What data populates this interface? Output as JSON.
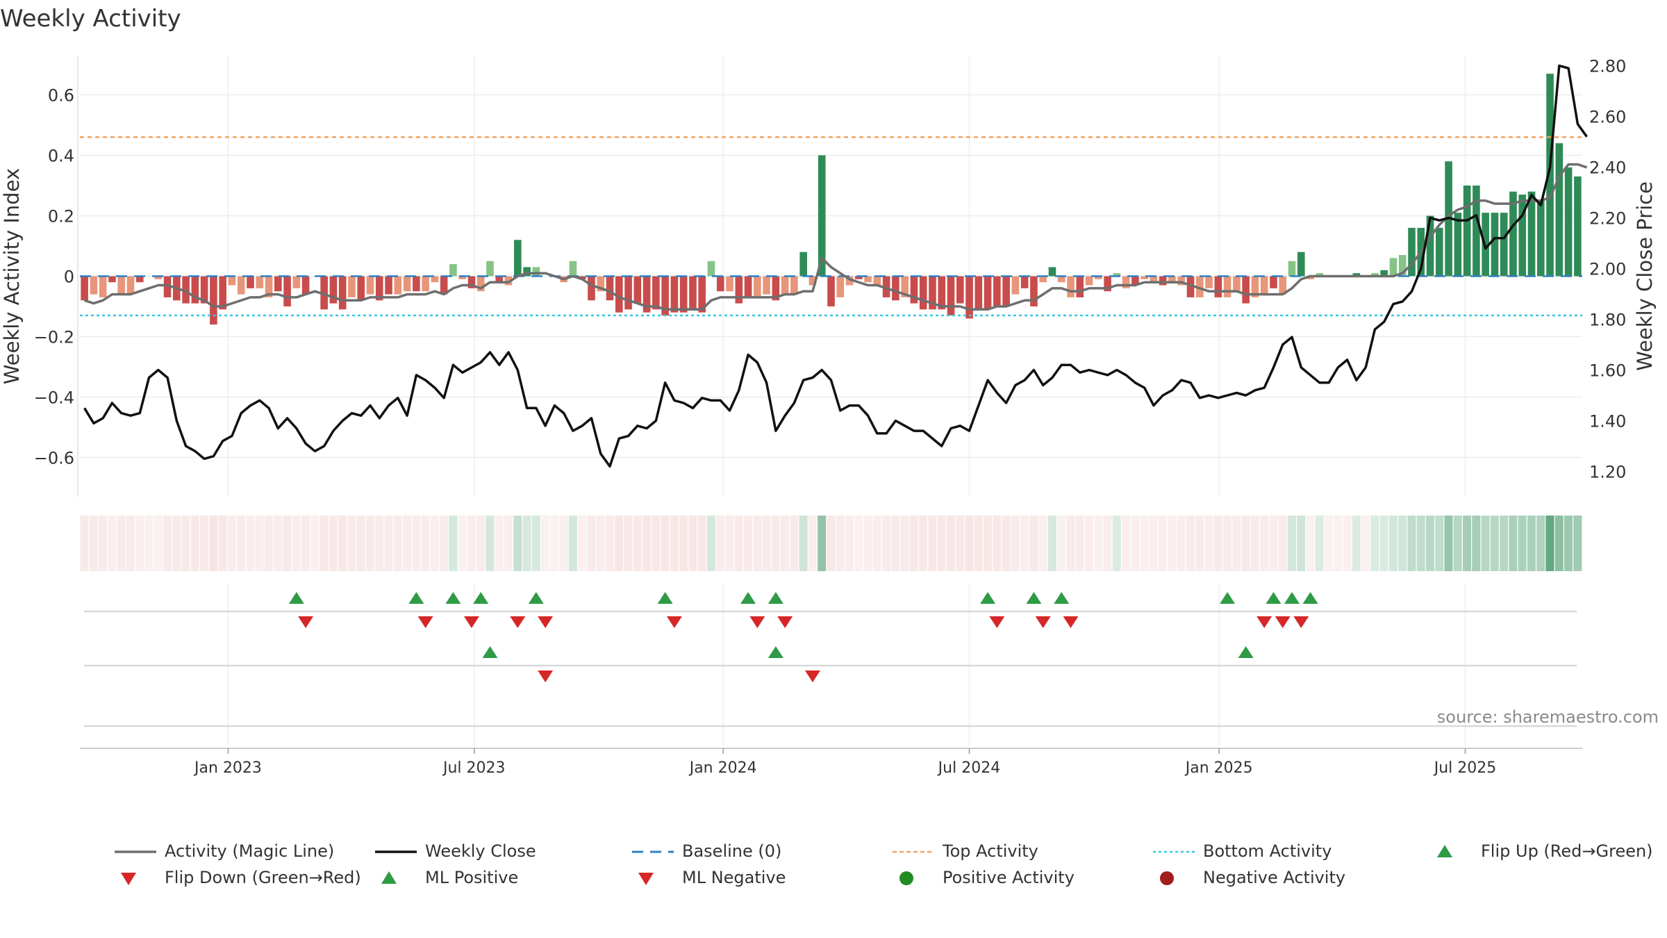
{
  "title": "Weekly Activity",
  "colors": {
    "pos_strong": "#2e8b57",
    "pos_light": "#86c386",
    "neg_strong": "#c94c4c",
    "neg_light": "#e8967a",
    "magic": "#6e6e6e",
    "close": "#111111",
    "baseline": "#2f7fc1",
    "top": "#f0a462",
    "bottom": "#37c8e0",
    "flip_up": "#2e9b45",
    "flip_down": "#d62728"
  },
  "source_text": "source: sharemaestro.com",
  "chart_data": {
    "type": "bar",
    "title": "Weekly Activity",
    "ylabel": "Weekly Activity Index",
    "y2label": "Weekly Close Price",
    "ylim": [
      -0.73,
      0.73
    ],
    "y2lim": [
      1.1,
      2.84
    ],
    "yticks": [
      0.6,
      0.4,
      0.2,
      0,
      -0.2,
      -0.4,
      -0.6
    ],
    "ytick_labels": [
      "0.6",
      "0.4",
      "0.2",
      "0",
      "−0.2",
      "−0.4",
      "−0.6"
    ],
    "y2ticks": [
      2.8,
      2.6,
      2.4,
      2.2,
      2.0,
      1.8,
      1.6,
      1.4,
      1.2
    ],
    "y2tick_labels": [
      "2.80",
      "2.60",
      "2.40",
      "2.20",
      "2.00",
      "1.80",
      "1.60",
      "1.40",
      "1.20"
    ],
    "x_range_weeks": [
      0,
      158
    ],
    "xticks": [
      {
        "label": "Jan 2023",
        "week": 15.3
      },
      {
        "label": "Jul 2023",
        "week": 41.3
      },
      {
        "label": "Jan 2024",
        "week": 67.6
      },
      {
        "label": "Jul 2024",
        "week": 93.6
      },
      {
        "label": "Jan 2025",
        "week": 120.0
      },
      {
        "label": "Jul 2025",
        "week": 146.0
      }
    ],
    "top_activity": 0.46,
    "bottom_activity": -0.13,
    "baseline": 0,
    "activity": [
      -0.08,
      -0.06,
      -0.07,
      -0.02,
      -0.06,
      -0.06,
      -0.02,
      0,
      -0.01,
      -0.07,
      -0.08,
      -0.09,
      -0.09,
      -0.09,
      -0.16,
      -0.11,
      -0.03,
      -0.06,
      -0.04,
      -0.04,
      -0.07,
      -0.05,
      -0.1,
      -0.04,
      -0.06,
      0,
      -0.11,
      -0.09,
      -0.11,
      -0.07,
      -0.08,
      -0.06,
      -0.08,
      -0.06,
      -0.06,
      -0.05,
      -0.05,
      -0.05,
      -0.02,
      -0.06,
      0.04,
      -0.01,
      -0.04,
      -0.05,
      0.05,
      -0.02,
      -0.03,
      0.12,
      0.03,
      0.03,
      0,
      0,
      -0.02,
      0.05,
      -0.01,
      -0.08,
      -0.05,
      -0.08,
      -0.12,
      -0.11,
      -0.09,
      -0.12,
      -0.11,
      -0.13,
      -0.12,
      -0.12,
      -0.11,
      -0.12,
      0.05,
      -0.05,
      -0.05,
      -0.09,
      -0.07,
      -0.07,
      -0.06,
      -0.08,
      -0.06,
      -0.06,
      0.08,
      -0.03,
      0.4,
      -0.1,
      -0.07,
      -0.03,
      -0.01,
      -0.02,
      -0.03,
      -0.07,
      -0.08,
      -0.07,
      -0.09,
      -0.11,
      -0.11,
      -0.11,
      -0.13,
      -0.09,
      -0.14,
      -0.11,
      -0.11,
      -0.1,
      -0.1,
      -0.06,
      -0.04,
      -0.1,
      -0.02,
      0.03,
      -0.02,
      -0.07,
      -0.07,
      -0.03,
      -0.01,
      -0.05,
      0.01,
      -0.04,
      -0.03,
      -0.01,
      -0.02,
      -0.03,
      -0.02,
      -0.03,
      -0.07,
      -0.07,
      -0.04,
      -0.07,
      -0.07,
      -0.05,
      -0.09,
      -0.07,
      -0.06,
      -0.04,
      -0.06,
      0.05,
      0.08,
      -0.01,
      0.01,
      0,
      0,
      0,
      0.01,
      0,
      0.01,
      0.02,
      0.06,
      0.07,
      0.16,
      0.16,
      0.2,
      0.16,
      0.38,
      0.21,
      0.3,
      0.3,
      0.21,
      0.21,
      0.21,
      0.28,
      0.27,
      0.28,
      0.25,
      0.67,
      0.44,
      0.36,
      0.33
    ],
    "magic_line": [
      -0.08,
      -0.09,
      -0.08,
      -0.06,
      -0.06,
      -0.06,
      -0.05,
      -0.04,
      -0.03,
      -0.03,
      -0.04,
      -0.05,
      -0.07,
      -0.08,
      -0.1,
      -0.1,
      -0.09,
      -0.08,
      -0.07,
      -0.07,
      -0.06,
      -0.06,
      -0.07,
      -0.07,
      -0.06,
      -0.05,
      -0.06,
      -0.07,
      -0.08,
      -0.08,
      -0.08,
      -0.07,
      -0.07,
      -0.07,
      -0.07,
      -0.06,
      -0.06,
      -0.06,
      -0.05,
      -0.06,
      -0.04,
      -0.03,
      -0.03,
      -0.04,
      -0.02,
      -0.02,
      -0.02,
      0,
      0.01,
      0.01,
      0.01,
      0,
      -0.01,
      0,
      -0.01,
      -0.03,
      -0.04,
      -0.05,
      -0.07,
      -0.08,
      -0.09,
      -0.1,
      -0.1,
      -0.11,
      -0.11,
      -0.11,
      -0.11,
      -0.11,
      -0.08,
      -0.07,
      -0.07,
      -0.07,
      -0.07,
      -0.07,
      -0.07,
      -0.07,
      -0.06,
      -0.06,
      -0.05,
      -0.05,
      0.06,
      0.03,
      0.01,
      -0.01,
      -0.02,
      -0.03,
      -0.03,
      -0.04,
      -0.05,
      -0.06,
      -0.07,
      -0.08,
      -0.09,
      -0.1,
      -0.1,
      -0.1,
      -0.11,
      -0.11,
      -0.11,
      -0.1,
      -0.1,
      -0.09,
      -0.08,
      -0.08,
      -0.06,
      -0.04,
      -0.04,
      -0.05,
      -0.05,
      -0.04,
      -0.04,
      -0.04,
      -0.03,
      -0.03,
      -0.03,
      -0.02,
      -0.02,
      -0.02,
      -0.02,
      -0.02,
      -0.03,
      -0.04,
      -0.05,
      -0.05,
      -0.05,
      -0.05,
      -0.06,
      -0.06,
      -0.06,
      -0.06,
      -0.06,
      -0.04,
      -0.01,
      0,
      0,
      0,
      0,
      0,
      0,
      0,
      0,
      0,
      0,
      0.01,
      0.04,
      0.08,
      0.13,
      0.17,
      0.2,
      0.22,
      0.23,
      0.25,
      0.25,
      0.24,
      0.24,
      0.24,
      0.25,
      0.25,
      0.25,
      0.26,
      0.33,
      0.37,
      0.37,
      0.36
    ],
    "weekly_close": [
      1.45,
      1.39,
      1.41,
      1.47,
      1.43,
      1.42,
      1.43,
      1.57,
      1.6,
      1.57,
      1.4,
      1.3,
      1.28,
      1.25,
      1.26,
      1.32,
      1.34,
      1.43,
      1.46,
      1.48,
      1.45,
      1.37,
      1.41,
      1.37,
      1.31,
      1.28,
      1.3,
      1.36,
      1.4,
      1.43,
      1.42,
      1.46,
      1.41,
      1.46,
      1.49,
      1.42,
      1.58,
      1.56,
      1.53,
      1.49,
      1.62,
      1.59,
      1.61,
      1.63,
      1.67,
      1.62,
      1.67,
      1.6,
      1.45,
      1.45,
      1.38,
      1.46,
      1.43,
      1.36,
      1.38,
      1.41,
      1.27,
      1.22,
      1.33,
      1.34,
      1.38,
      1.37,
      1.4,
      1.55,
      1.48,
      1.47,
      1.45,
      1.49,
      1.48,
      1.48,
      1.44,
      1.52,
      1.66,
      1.63,
      1.55,
      1.36,
      1.42,
      1.47,
      1.56,
      1.57,
      1.6,
      1.56,
      1.44,
      1.46,
      1.46,
      1.42,
      1.35,
      1.35,
      1.4,
      1.38,
      1.36,
      1.36,
      1.33,
      1.3,
      1.37,
      1.38,
      1.36,
      1.46,
      1.56,
      1.51,
      1.47,
      1.54,
      1.56,
      1.6,
      1.54,
      1.57,
      1.62,
      1.62,
      1.59,
      1.6,
      1.59,
      1.58,
      1.6,
      1.58,
      1.55,
      1.53,
      1.46,
      1.5,
      1.52,
      1.56,
      1.55,
      1.49,
      1.5,
      1.49,
      1.5,
      1.51,
      1.5,
      1.52,
      1.53,
      1.61,
      1.7,
      1.73,
      1.61,
      1.58,
      1.55,
      1.55,
      1.61,
      1.64,
      1.56,
      1.61,
      1.76,
      1.79,
      1.86,
      1.87,
      1.91,
      2.0,
      2.2,
      2.19,
      2.2,
      2.19,
      2.19,
      2.21,
      2.08,
      2.12,
      2.12,
      2.17,
      2.21,
      2.29,
      2.25,
      2.4,
      2.8,
      2.79,
      2.57,
      2.52
    ]
  },
  "strips": {
    "flip_up_weeks": [
      23,
      36,
      40,
      43,
      49,
      63,
      72,
      75,
      98,
      103,
      106,
      124,
      129,
      131,
      133
    ],
    "flip_down_weeks": [
      24,
      37,
      42,
      47,
      50,
      64,
      73,
      76,
      99,
      104,
      107,
      128,
      130,
      132
    ],
    "ml_positive_weeks": [
      44,
      75,
      126
    ],
    "ml_negative_weeks": [
      50,
      79
    ]
  },
  "legend": [
    {
      "key": "magic",
      "label": "Activity (Magic Line)"
    },
    {
      "key": "close",
      "label": "Weekly Close"
    },
    {
      "key": "baseline",
      "label": "Baseline (0)"
    },
    {
      "key": "top",
      "label": "Top Activity"
    },
    {
      "key": "bottom",
      "label": "Bottom Activity"
    },
    {
      "key": "flip_up",
      "label": "Flip Up (Red→Green)"
    },
    {
      "key": "flip_down",
      "label": "Flip Down (Green→Red)"
    },
    {
      "key": "ml_pos",
      "label": "ML Positive"
    },
    {
      "key": "ml_neg",
      "label": "ML Negative"
    },
    {
      "key": "pos_act",
      "label": "Positive Activity"
    },
    {
      "key": "neg_act",
      "label": "Negative Activity"
    }
  ]
}
